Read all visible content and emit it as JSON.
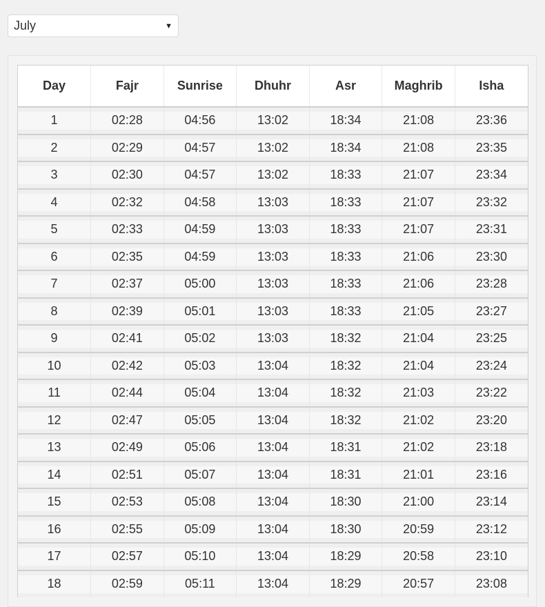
{
  "month_select": {
    "value": "July",
    "arrow_icon": "dropdown-triangle-icon"
  },
  "table": {
    "headers": [
      "Day",
      "Fajr",
      "Sunrise",
      "Dhuhr",
      "Asr",
      "Maghrib",
      "Isha"
    ],
    "rows": [
      [
        "1",
        "02:28",
        "04:56",
        "13:02",
        "18:34",
        "21:08",
        "23:36"
      ],
      [
        "2",
        "02:29",
        "04:57",
        "13:02",
        "18:34",
        "21:08",
        "23:35"
      ],
      [
        "3",
        "02:30",
        "04:57",
        "13:02",
        "18:33",
        "21:07",
        "23:34"
      ],
      [
        "4",
        "02:32",
        "04:58",
        "13:03",
        "18:33",
        "21:07",
        "23:32"
      ],
      [
        "5",
        "02:33",
        "04:59",
        "13:03",
        "18:33",
        "21:07",
        "23:31"
      ],
      [
        "6",
        "02:35",
        "04:59",
        "13:03",
        "18:33",
        "21:06",
        "23:30"
      ],
      [
        "7",
        "02:37",
        "05:00",
        "13:03",
        "18:33",
        "21:06",
        "23:28"
      ],
      [
        "8",
        "02:39",
        "05:01",
        "13:03",
        "18:33",
        "21:05",
        "23:27"
      ],
      [
        "9",
        "02:41",
        "05:02",
        "13:03",
        "18:32",
        "21:04",
        "23:25"
      ],
      [
        "10",
        "02:42",
        "05:03",
        "13:04",
        "18:32",
        "21:04",
        "23:24"
      ],
      [
        "11",
        "02:44",
        "05:04",
        "13:04",
        "18:32",
        "21:03",
        "23:22"
      ],
      [
        "12",
        "02:47",
        "05:05",
        "13:04",
        "18:32",
        "21:02",
        "23:20"
      ],
      [
        "13",
        "02:49",
        "05:06",
        "13:04",
        "18:31",
        "21:02",
        "23:18"
      ],
      [
        "14",
        "02:51",
        "05:07",
        "13:04",
        "18:31",
        "21:01",
        "23:16"
      ],
      [
        "15",
        "02:53",
        "05:08",
        "13:04",
        "18:30",
        "21:00",
        "23:14"
      ],
      [
        "16",
        "02:55",
        "05:09",
        "13:04",
        "18:30",
        "20:59",
        "23:12"
      ],
      [
        "17",
        "02:57",
        "05:10",
        "13:04",
        "18:29",
        "20:58",
        "23:10"
      ],
      [
        "18",
        "02:59",
        "05:11",
        "13:04",
        "18:29",
        "20:57",
        "23:08"
      ]
    ]
  }
}
